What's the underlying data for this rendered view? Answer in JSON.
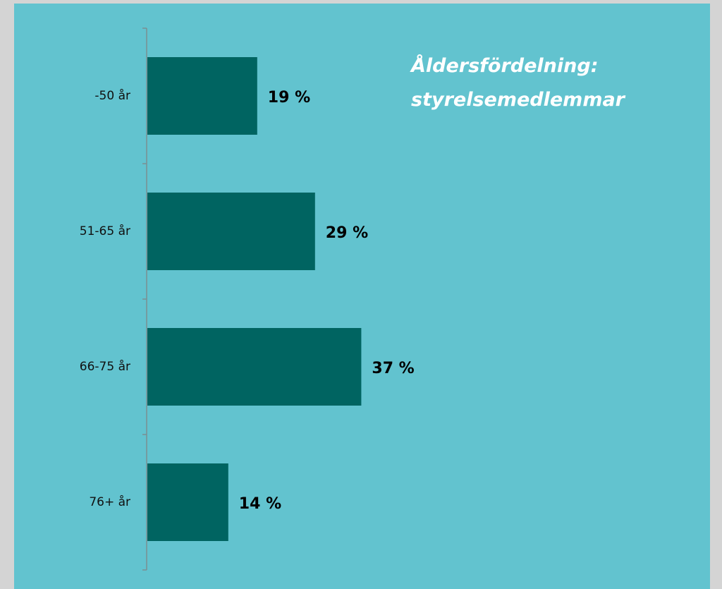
{
  "chart_data": {
    "type": "bar",
    "orientation": "horizontal",
    "title": "Åldersfördelning: styrelsemedlemmar",
    "categories": [
      "-50 år",
      "51-65 år",
      "66-75 år",
      "76+ år"
    ],
    "values": [
      19,
      29,
      37,
      14
    ],
    "value_labels": [
      "19 %",
      "29 %",
      "37 %",
      "14 %"
    ],
    "color": "#006461"
  }
}
